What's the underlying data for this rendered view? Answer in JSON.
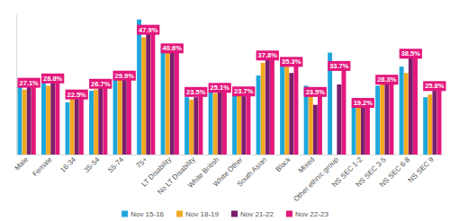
{
  "chart_data": {
    "type": "bar",
    "categories": [
      "Male",
      "Female",
      "16-34",
      "35-54",
      "55-74",
      "75+",
      "LT Disability",
      "No LT Disability",
      "White British",
      "White Other",
      "South Asian",
      "Black",
      "Mixed",
      "Other ethnic group",
      "NS SEC 1-2",
      "NS SEC 3-5",
      "NS SEC 6-8",
      "NS SEC 9"
    ],
    "series": [
      {
        "name": "Nov 15-16",
        "color": "#1ea7dc",
        "values": [
          27,
          29,
          20.5,
          25,
          30.5,
          53,
          42,
          22.5,
          25,
          23.5,
          31,
          38,
          27,
          40,
          19,
          27,
          34.5,
          22.5
        ]
      },
      {
        "name": "Nov 18-19",
        "color": "#f2a922",
        "values": [
          25.5,
          27,
          22,
          25.5,
          29.5,
          46,
          41,
          21.5,
          24,
          24,
          36,
          37,
          25.5,
          null,
          19,
          29,
          32,
          23.5
        ]
      },
      {
        "name": "Nov 21-22",
        "color": "#7b1f6c",
        "values": [
          27,
          29,
          22.5,
          26.5,
          30.5,
          48,
          42,
          22.5,
          25,
          23.5,
          37.5,
          32,
          19.5,
          27.5,
          19.5,
          28.5,
          39,
          25.5
        ]
      },
      {
        "name": "Nov 22-23",
        "color": "#e3177c",
        "values": [
          27.1,
          28.8,
          22.5,
          26.7,
          29.9,
          47.9,
          40.6,
          23.5,
          25.1,
          23.7,
          37.8,
          35.3,
          23.5,
          33.7,
          19.2,
          28.3,
          38.5,
          25.8
        ],
        "data_labels": true,
        "value_labels": [
          "27.1%",
          "28.8%",
          "22.5%",
          "26.7%",
          "29.9%",
          "47.9%",
          "40.6%",
          "23.5%",
          "25.1%",
          "23.7%",
          "37.8%",
          "35.3%",
          "23.5%",
          "33.7%",
          "19.2%",
          "28.3%",
          "38.5%",
          "25.8%"
        ]
      }
    ],
    "ylim": [
      0,
      55
    ],
    "grid": false,
    "legend": "bottom",
    "tick_labels": "x"
  }
}
